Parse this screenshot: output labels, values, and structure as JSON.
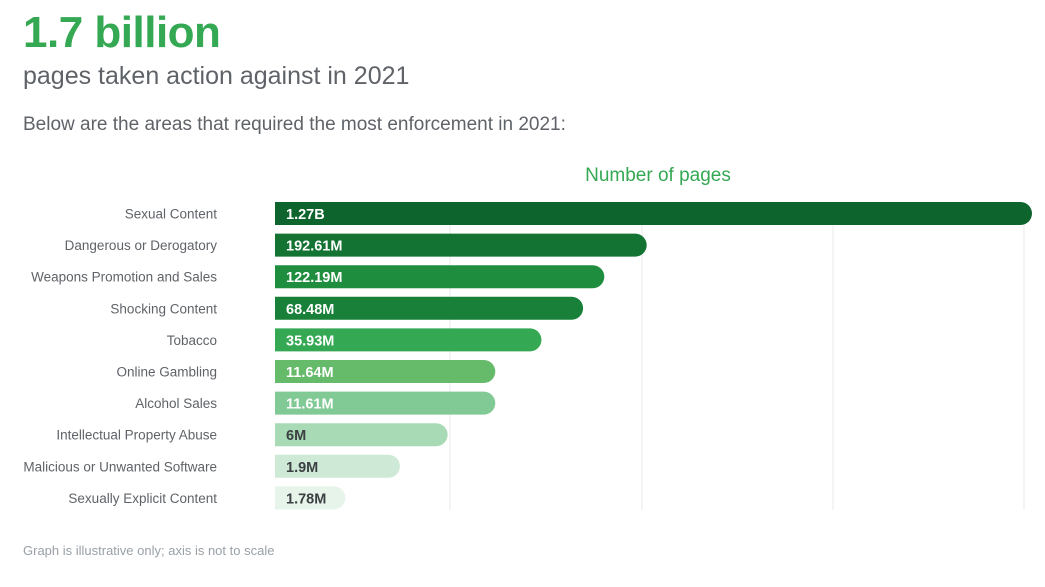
{
  "header": {
    "headline": "1.7 billion",
    "subhead": "pages taken action against in 2021",
    "intro": "Below are the areas that required the most enforcement in 2021:"
  },
  "footnote": "Graph is illustrative only; axis is not to scale",
  "chart_data": {
    "type": "bar",
    "orientation": "horizontal",
    "title": "Number of pages",
    "axis_scale": "illustrative, not to scale",
    "grid": true,
    "categories": [
      "Sexual Content",
      "Dangerous or Derogatory",
      "Weapons Promotion and Sales",
      "Shocking Content",
      "Tobacco",
      "Online Gambling",
      "Alcohol Sales",
      "Intellectual Property Abuse",
      "Malicious or Unwanted Software",
      "Sexually Explicit Content"
    ],
    "labels": [
      "1.27B",
      "192.61M",
      "122.19M",
      "68.48M",
      "35.93M",
      "11.64M",
      "11.61M",
      "6M",
      "1.9M",
      "1.78M"
    ],
    "values_millions": [
      1270,
      192.61,
      122.19,
      68.48,
      35.93,
      11.64,
      11.61,
      6,
      1.9,
      1.78
    ],
    "display_fraction": [
      1.0,
      0.491,
      0.435,
      0.407,
      0.352,
      0.291,
      0.291,
      0.228,
      0.165,
      0.093
    ],
    "colors": [
      "#0d652d",
      "#137333",
      "#1e8e3e",
      "#188038",
      "#34a853",
      "#66bb6a",
      "#81c995",
      "#a8dab5",
      "#ceead6",
      "#e6f4ea"
    ],
    "label_colors": [
      "#ffffff",
      "#ffffff",
      "#ffffff",
      "#ffffff",
      "#ffffff",
      "#ffffff",
      "#ffffff",
      "#3c4043",
      "#3c4043",
      "#3c4043"
    ]
  }
}
